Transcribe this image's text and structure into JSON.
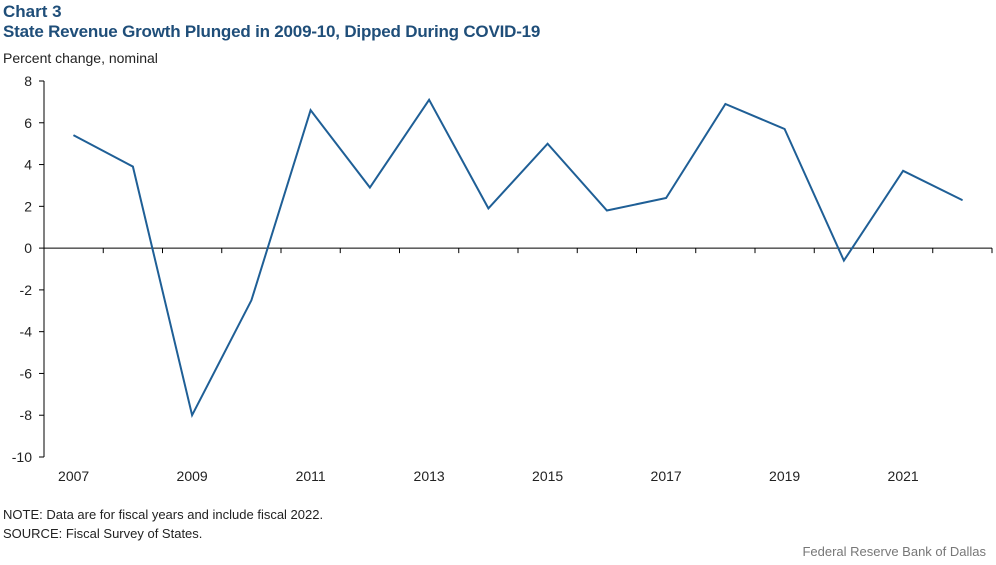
{
  "header": {
    "chart_label": "Chart 3",
    "title": "State Revenue Growth Plunged in 2009-10, Dipped During COVID-19",
    "y_unit": "Percent change, nominal"
  },
  "footer": {
    "note": "NOTE: Data are for fiscal years and include fiscal 2022.",
    "source": "SOURCE: Fiscal Survey of States.",
    "credit": "Federal Reserve Bank of Dallas"
  },
  "colors": {
    "line": "#1f5f96",
    "axis": "#000000",
    "title": "#1f4e79"
  },
  "chart_data": {
    "type": "line",
    "title": "State Revenue Growth Plunged in 2009-10, Dipped During COVID-19",
    "ylabel": "Percent change, nominal",
    "xlabel": "",
    "x": [
      2007,
      2008,
      2009,
      2010,
      2011,
      2012,
      2013,
      2014,
      2015,
      2016,
      2017,
      2018,
      2019,
      2020,
      2021,
      2022
    ],
    "series": [
      {
        "values": [
          5.4,
          3.9,
          -8.0,
          -2.5,
          6.6,
          2.9,
          7.1,
          1.9,
          5.0,
          1.8,
          2.4,
          6.9,
          5.7,
          -0.6,
          3.7,
          2.3
        ]
      }
    ],
    "ylim": [
      -10,
      8
    ],
    "yticks": [
      8,
      6,
      4,
      2,
      0,
      -2,
      -4,
      -6,
      -8,
      -10
    ],
    "xticklabels": [
      "2007",
      "2009",
      "2011",
      "2013",
      "2015",
      "2017",
      "2019",
      "2021"
    ],
    "grid": false,
    "legend": "none"
  }
}
